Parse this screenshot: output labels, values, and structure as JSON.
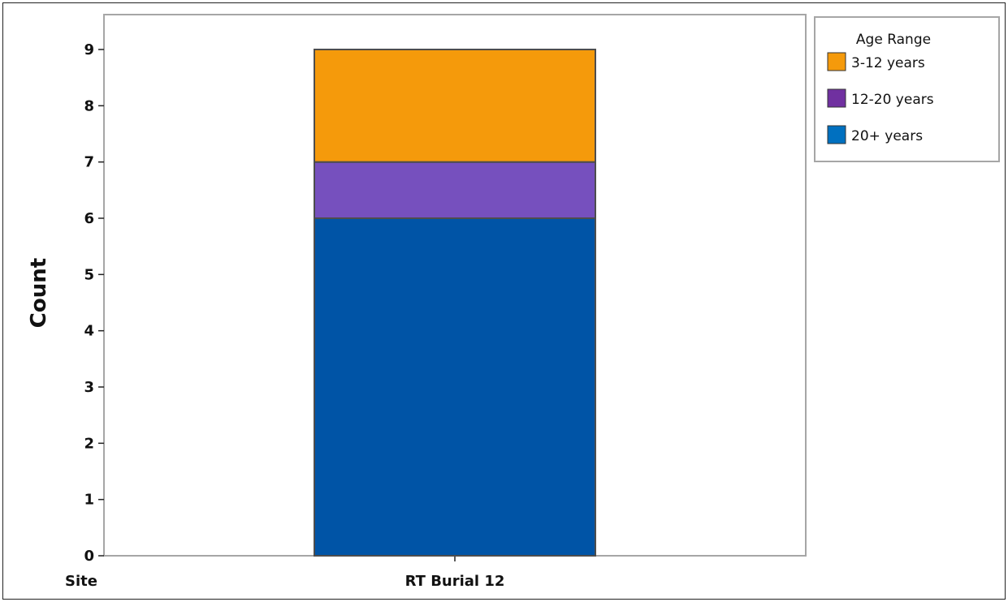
{
  "chart_data": {
    "type": "bar",
    "stacked": true,
    "categories": [
      "RT Burial 12"
    ],
    "xlabel": "Site",
    "ylabel": "Count",
    "ylim": [
      0,
      9
    ],
    "yticks": [
      0,
      1,
      2,
      3,
      4,
      5,
      6,
      7,
      8,
      9
    ],
    "grid": false,
    "legend": {
      "title": "Age Range",
      "placement": "top-right",
      "entries": [
        {
          "label": "3-12 years",
          "color": "#F59A0B"
        },
        {
          "label": "12-20 years",
          "color": "#7030A0"
        },
        {
          "label": "20+ years",
          "color": "#0070C0"
        }
      ]
    },
    "series": [
      {
        "name": "20+ years",
        "values": [
          6
        ],
        "color": "#0054A6"
      },
      {
        "name": "12-20 years",
        "values": [
          1
        ],
        "color": "#7650BE"
      },
      {
        "name": "3-12 years",
        "values": [
          2
        ],
        "color": "#F59A0B"
      }
    ]
  }
}
